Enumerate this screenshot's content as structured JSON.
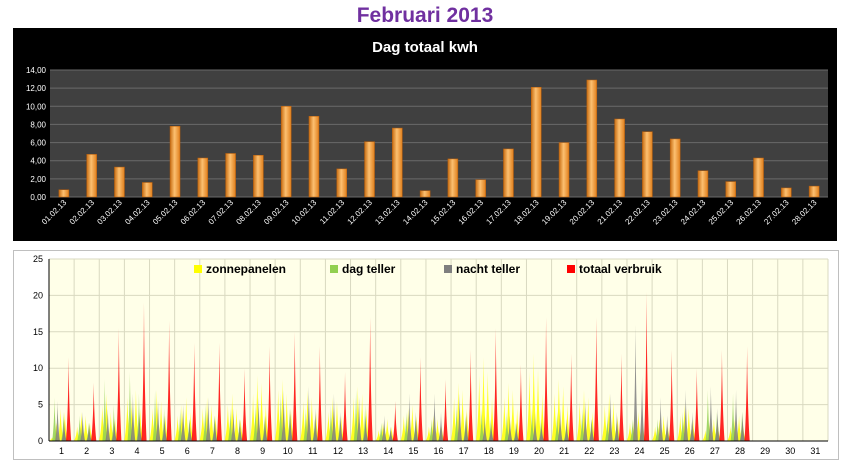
{
  "page": {
    "title": "Februari 2013"
  },
  "chart_data": [
    {
      "type": "bar",
      "title": "Dag totaal kwh",
      "categories": [
        "01.02.13",
        "02.02.13",
        "03.02.13",
        "04.02.13",
        "05.02.13",
        "06.02.13",
        "07.02.13",
        "08.02.13",
        "09.02.13",
        "10.02.13",
        "11.02.13",
        "12.02.13",
        "13.02.13",
        "14.02.13",
        "15.02.13",
        "16.02.13",
        "17.02.13",
        "18.02.13",
        "19.02.13",
        "20.02.13",
        "21.02.13",
        "22.02.13",
        "23.02.13",
        "24.02.13",
        "25.02.13",
        "26.02.13",
        "27.02.13",
        "28.02.13"
      ],
      "values": [
        0.8,
        4.7,
        3.3,
        1.6,
        7.8,
        4.3,
        4.8,
        4.6,
        10.0,
        8.9,
        3.1,
        6.1,
        7.6,
        0.7,
        4.2,
        1.9,
        5.3,
        12.1,
        6.0,
        12.9,
        8.6,
        7.2,
        6.4,
        2.9,
        1.7,
        4.3,
        1.0,
        1.2
      ],
      "yticks": [
        "0,00",
        "2,00",
        "4,00",
        "6,00",
        "8,00",
        "10,00",
        "12,00",
        "14,00"
      ],
      "ylim": [
        0,
        14
      ],
      "grid": true,
      "colors": {
        "background": "#000000",
        "plot": "#404040",
        "bar": "#f0962a",
        "bar_light": "#fcc071",
        "text": "#ffffff"
      }
    },
    {
      "type": "area",
      "categories": [
        "1",
        "2",
        "3",
        "4",
        "5",
        "6",
        "7",
        "8",
        "9",
        "10",
        "11",
        "12",
        "13",
        "14",
        "15",
        "16",
        "17",
        "18",
        "19",
        "20",
        "21",
        "22",
        "23",
        "24",
        "25",
        "26",
        "27",
        "28",
        "29",
        "30",
        "31"
      ],
      "ylim": [
        0,
        25
      ],
      "yticks": [
        "0",
        "5",
        "10",
        "15",
        "20",
        "25"
      ],
      "grid": true,
      "legend_position": "top",
      "series": [
        {
          "name": "zonnepanelen",
          "color": "#ffff00",
          "peaks": [
            [
              0.5,
              2.5,
              4.5,
              4.0
            ],
            [
              2.0,
              4.0,
              3.5,
              2.5
            ],
            [
              5.0,
              6.5,
              4.0,
              3.0
            ],
            [
              6.0,
              5.5,
              7.0,
              4.5
            ],
            [
              4.5,
              7.0,
              5.5,
              3.5
            ],
            [
              3.5,
              5.0,
              6.0,
              4.0
            ],
            [
              4.5,
              6.0,
              5.0,
              3.5
            ],
            [
              5.0,
              6.5,
              4.5,
              3.0
            ],
            [
              6.5,
              9.0,
              8.0,
              5.0
            ],
            [
              7.0,
              8.5,
              6.5,
              4.5
            ],
            [
              5.5,
              7.0,
              6.0,
              4.0
            ],
            [
              4.0,
              6.0,
              5.5,
              3.5
            ],
            [
              6.0,
              7.5,
              6.5,
              4.5
            ],
            [
              1.5,
              2.5,
              3.0,
              2.0
            ],
            [
              3.5,
              4.5,
              5.0,
              3.5
            ],
            [
              2.0,
              3.5,
              3.0,
              2.0
            ],
            [
              6.0,
              8.0,
              7.0,
              4.5
            ],
            [
              9.0,
              11.5,
              9.5,
              6.0
            ],
            [
              6.0,
              8.0,
              7.0,
              4.5
            ],
            [
              9.5,
              12.0,
              10.0,
              6.5
            ],
            [
              6.5,
              8.5,
              7.5,
              5.0
            ],
            [
              5.5,
              7.0,
              6.0,
              4.0
            ],
            [
              5.0,
              6.5,
              5.5,
              3.5
            ],
            [
              2.5,
              3.5,
              4.0,
              2.5
            ],
            [
              2.0,
              3.0,
              3.5,
              2.0
            ],
            [
              3.5,
              5.0,
              4.5,
              3.0
            ],
            [
              1.5,
              2.5,
              3.0,
              2.0
            ],
            [
              2.0,
              3.0,
              3.5,
              2.0
            ]
          ]
        },
        {
          "name": "dag teller",
          "color": "#92d050",
          "peaks": [
            [
              6.0,
              4.0
            ],
            [
              3.5,
              2.5
            ],
            [
              8.5,
              5.0
            ],
            [
              9.5,
              6.5
            ],
            [
              7.0,
              4.5
            ],
            [
              4.5,
              3.0
            ],
            [
              5.0,
              3.5
            ],
            [
              4.5,
              3.0
            ],
            [
              5.0,
              3.5
            ],
            [
              6.5,
              4.5
            ],
            [
              4.5,
              3.0
            ],
            [
              5.0,
              3.5
            ],
            [
              7.0,
              5.0
            ],
            [
              2.5,
              1.5
            ],
            [
              4.0,
              3.0
            ],
            [
              3.0,
              2.0
            ],
            [
              5.0,
              3.5
            ],
            [
              4.5,
              3.0
            ],
            [
              4.0,
              2.5
            ],
            [
              4.5,
              3.0
            ],
            [
              4.0,
              2.5
            ],
            [
              4.5,
              3.0
            ],
            [
              3.5,
              2.5
            ],
            [
              3.0,
              2.0
            ],
            [
              3.0,
              2.0
            ],
            [
              4.0,
              2.5
            ],
            [
              7.0,
              4.0
            ],
            [
              6.5,
              4.0
            ]
          ]
        },
        {
          "name": "nacht teller",
          "color": "#7f7f7f",
          "peaks": [
            [
              5.5,
              3.0
            ],
            [
              4.0,
              2.5
            ],
            [
              4.5,
              3.0
            ],
            [
              6.5,
              4.0
            ],
            [
              5.5,
              3.5
            ],
            [
              5.0,
              3.0
            ],
            [
              6.0,
              3.5
            ],
            [
              4.5,
              3.0
            ],
            [
              6.0,
              3.5
            ],
            [
              7.0,
              4.5
            ],
            [
              7.5,
              4.5
            ],
            [
              6.5,
              4.0
            ],
            [
              6.0,
              3.5
            ],
            [
              3.5,
              2.0
            ],
            [
              6.5,
              4.0
            ],
            [
              6.5,
              4.0
            ],
            [
              6.5,
              4.0
            ],
            [
              3.5,
              2.5
            ],
            [
              3.5,
              2.5
            ],
            [
              4.0,
              2.5
            ],
            [
              4.5,
              3.0
            ],
            [
              5.5,
              3.0
            ],
            [
              6.5,
              4.0
            ],
            [
              16.0,
              9.0
            ],
            [
              6.0,
              3.5
            ],
            [
              7.0,
              4.0
            ],
            [
              7.5,
              4.5
            ],
            [
              7.0,
              4.0
            ]
          ]
        },
        {
          "name": "totaal verbruik",
          "color": "#ff0000",
          "peaks": [
            11.5,
            8.0,
            15.5,
            19.0,
            16.5,
            13.5,
            13.5,
            10.0,
            13.0,
            15.0,
            13.0,
            9.5,
            17.0,
            5.5,
            11.5,
            8.5,
            12.5,
            15.5,
            10.5,
            17.0,
            12.0,
            17.0,
            12.0,
            20.5,
            12.5,
            10.0,
            12.5,
            13.0
          ]
        }
      ]
    }
  ]
}
